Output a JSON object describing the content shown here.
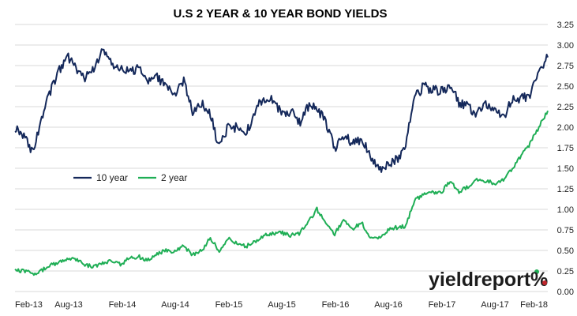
{
  "chart_data": {
    "type": "line",
    "title": "U.S 2 YEAR & 10 YEAR BOND YIELDS",
    "xlabel": "",
    "ylabel": "",
    "x_ticks": [
      "Feb-13",
      "Aug-13",
      "Feb-14",
      "Aug-14",
      "Feb-15",
      "Aug-15",
      "Feb-16",
      "Aug-16",
      "Feb-17",
      "Aug-17",
      "Feb-18"
    ],
    "y_ticks": [
      "0.00",
      "0.25",
      "0.50",
      "0.75",
      "1.00",
      "1.25",
      "1.50",
      "1.75",
      "2.00",
      "2.25",
      "2.50",
      "2.75",
      "3.00",
      "3.25"
    ],
    "ylim": [
      0,
      3.25
    ],
    "y_axis_side": "right",
    "grid": "horizontal",
    "legend_position": "center-left",
    "series": [
      {
        "name": "10 year",
        "color": "#14285a",
        "x": [
          "Feb-13",
          "Mar-13",
          "Apr-13",
          "May-13",
          "Jun-13",
          "Jul-13",
          "Aug-13",
          "Sep-13",
          "Oct-13",
          "Nov-13",
          "Dec-13",
          "Jan-14",
          "Feb-14",
          "Mar-14",
          "Apr-14",
          "May-14",
          "Jun-14",
          "Jul-14",
          "Aug-14",
          "Sep-14",
          "Oct-14",
          "Nov-14",
          "Dec-14",
          "Jan-15",
          "Feb-15",
          "Mar-15",
          "Apr-15",
          "May-15",
          "Jun-15",
          "Jul-15",
          "Aug-15",
          "Sep-15",
          "Oct-15",
          "Nov-15",
          "Dec-15",
          "Jan-16",
          "Feb-16",
          "Mar-16",
          "Apr-16",
          "May-16",
          "Jun-16",
          "Jul-16",
          "Aug-16",
          "Sep-16",
          "Oct-16",
          "Nov-16",
          "Dec-16",
          "Jan-17",
          "Feb-17",
          "Mar-17",
          "Apr-17",
          "May-17",
          "Jun-17",
          "Jul-17",
          "Aug-17",
          "Sep-17",
          "Oct-17",
          "Nov-17",
          "Dec-17",
          "Jan-18",
          "Feb-18"
        ],
        "values": [
          2.0,
          1.9,
          1.7,
          2.1,
          2.45,
          2.7,
          2.85,
          2.7,
          2.6,
          2.75,
          2.95,
          2.75,
          2.7,
          2.7,
          2.7,
          2.55,
          2.6,
          2.5,
          2.4,
          2.55,
          2.2,
          2.3,
          2.15,
          1.75,
          2.0,
          2.0,
          1.9,
          2.2,
          2.35,
          2.35,
          2.15,
          2.2,
          2.05,
          2.25,
          2.25,
          2.05,
          1.75,
          1.9,
          1.8,
          1.85,
          1.65,
          1.5,
          1.55,
          1.6,
          1.8,
          2.35,
          2.5,
          2.45,
          2.45,
          2.5,
          2.3,
          2.25,
          2.15,
          2.3,
          2.2,
          2.1,
          2.35,
          2.35,
          2.4,
          2.7,
          2.85
        ]
      },
      {
        "name": "2 year",
        "color": "#1fae55",
        "x": [
          "Feb-13",
          "Mar-13",
          "Apr-13",
          "May-13",
          "Jun-13",
          "Jul-13",
          "Aug-13",
          "Sep-13",
          "Oct-13",
          "Nov-13",
          "Dec-13",
          "Jan-14",
          "Feb-14",
          "Mar-14",
          "Apr-14",
          "May-14",
          "Jun-14",
          "Jul-14",
          "Aug-14",
          "Sep-14",
          "Oct-14",
          "Nov-14",
          "Dec-14",
          "Jan-15",
          "Feb-15",
          "Mar-15",
          "Apr-15",
          "May-15",
          "Jun-15",
          "Jul-15",
          "Aug-15",
          "Sep-15",
          "Oct-15",
          "Nov-15",
          "Dec-15",
          "Jan-16",
          "Feb-16",
          "Mar-16",
          "Apr-16",
          "May-16",
          "Jun-16",
          "Jul-16",
          "Aug-16",
          "Sep-16",
          "Oct-16",
          "Nov-16",
          "Dec-16",
          "Jan-17",
          "Feb-17",
          "Mar-17",
          "Apr-17",
          "May-17",
          "Jun-17",
          "Jul-17",
          "Aug-17",
          "Sep-17",
          "Oct-17",
          "Nov-17",
          "Dec-17",
          "Jan-18",
          "Feb-18"
        ],
        "values": [
          0.25,
          0.25,
          0.22,
          0.25,
          0.33,
          0.35,
          0.4,
          0.38,
          0.32,
          0.3,
          0.35,
          0.38,
          0.32,
          0.42,
          0.42,
          0.38,
          0.45,
          0.5,
          0.48,
          0.55,
          0.45,
          0.5,
          0.65,
          0.5,
          0.65,
          0.58,
          0.55,
          0.6,
          0.68,
          0.7,
          0.72,
          0.68,
          0.7,
          0.85,
          1.0,
          0.85,
          0.7,
          0.88,
          0.75,
          0.85,
          0.65,
          0.65,
          0.75,
          0.78,
          0.8,
          1.1,
          1.2,
          1.2,
          1.2,
          1.35,
          1.22,
          1.28,
          1.35,
          1.35,
          1.32,
          1.35,
          1.5,
          1.65,
          1.8,
          2.0,
          2.2
        ]
      }
    ]
  },
  "logo": {
    "name": "yieldreport",
    "symbol": "%",
    "colors": {
      "text": "#1c1c1c",
      "dot_up": "#1fae55",
      "dot_down": "#c0272d"
    }
  }
}
